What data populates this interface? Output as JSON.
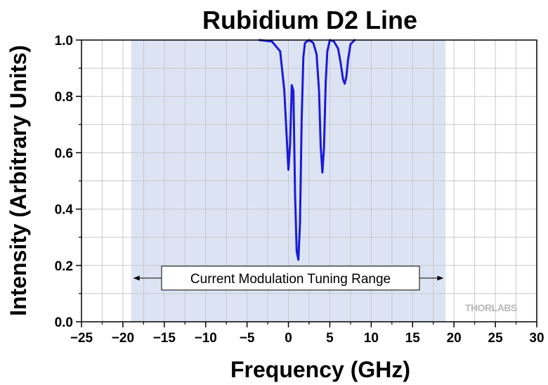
{
  "chart_data": {
    "type": "line",
    "title": "Rubidium D2 Line",
    "xlabel": "Frequency (GHz)",
    "ylabel": "Intensity (Arbitrary Units)",
    "xlim": [
      -25,
      30
    ],
    "ylim": [
      0.0,
      1.0
    ],
    "xticks": [
      -25,
      -20,
      -15,
      -10,
      -5,
      0,
      5,
      10,
      15,
      20,
      25,
      30
    ],
    "xtick_labels": [
      "−25",
      "−20",
      "−15",
      "−10",
      "−5",
      "0",
      "5",
      "10",
      "15",
      "20",
      "25",
      "30"
    ],
    "yticks": [
      0.0,
      0.2,
      0.4,
      0.6,
      0.8,
      1.0
    ],
    "ytick_labels": [
      "0.0",
      "0.2",
      "0.4",
      "0.6",
      "0.8",
      "1.0"
    ],
    "grid": true,
    "series": [
      {
        "color": "#1a1adc",
        "x": [
          -3.5,
          -2.0,
          -1.0,
          -0.5,
          -0.2,
          0.0,
          0.2,
          0.4,
          0.6,
          0.8,
          1.0,
          1.2,
          1.4,
          1.6,
          1.8,
          2.0,
          2.5,
          3.0,
          3.4,
          3.7,
          3.9,
          4.1,
          4.3,
          4.5,
          4.7,
          5.0,
          5.5,
          6.0,
          6.3,
          6.6,
          6.8,
          7.0,
          7.2,
          7.5,
          8.0
        ],
        "y": [
          1.0,
          0.995,
          0.96,
          0.82,
          0.65,
          0.54,
          0.63,
          0.84,
          0.82,
          0.45,
          0.25,
          0.22,
          0.35,
          0.72,
          0.94,
          0.99,
          1.0,
          0.99,
          0.95,
          0.82,
          0.62,
          0.53,
          0.62,
          0.85,
          0.96,
          1.0,
          0.995,
          0.97,
          0.92,
          0.86,
          0.845,
          0.87,
          0.93,
          0.985,
          1.0
        ]
      }
    ],
    "shaded_region": {
      "x": [
        -19,
        19
      ],
      "color": "#dce4f4"
    },
    "annotations": [
      {
        "text": "Current Modulation Tuning Range",
        "x_range": [
          -19,
          19
        ],
        "y": 0.155
      }
    ]
  },
  "logo": "THORLABS"
}
